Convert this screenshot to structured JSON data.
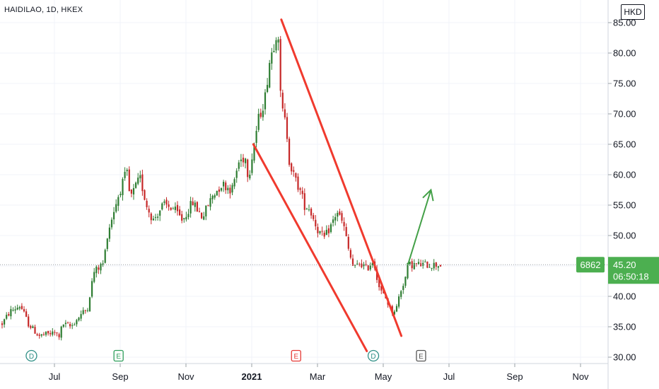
{
  "header": {
    "symbol": "HAIDILAO, 1D, HKEX",
    "currency": "HKD"
  },
  "price_box": {
    "ticker_code": "6862",
    "price": "45.20",
    "countdown": "06:50:18",
    "color": "#4caf50"
  },
  "colors": {
    "up": "#26a69a",
    "down": "#ef5350",
    "up_candle": "#2e7d32",
    "down_candle": "#c62828",
    "trendline": "#f03a2e",
    "arrow": "#43a047",
    "grid": "#f0f3fa"
  },
  "chart_data": {
    "type": "candlestick",
    "title": "",
    "xlabel": "",
    "ylabel": "",
    "ylim": [
      30,
      86.5
    ],
    "y_ticks": [
      "30.00",
      "35.00",
      "40.00",
      "45.00",
      "50.00",
      "55.00",
      "60.00",
      "65.00",
      "70.00",
      "75.00",
      "80.00",
      "85.00"
    ],
    "x_ticks": [
      {
        "label": "Jul",
        "month": 1,
        "bold": false
      },
      {
        "label": "Sep",
        "month": 3,
        "bold": false
      },
      {
        "label": "Nov",
        "month": 5,
        "bold": false
      },
      {
        "label": "2021",
        "month": 7,
        "bold": true
      },
      {
        "label": "Mar",
        "month": 9,
        "bold": false
      },
      {
        "label": "May",
        "month": 11,
        "bold": false
      },
      {
        "label": "Jul",
        "month": 13,
        "bold": false
      },
      {
        "label": "Sep",
        "month": 15,
        "bold": false
      },
      {
        "label": "Nov",
        "month": 17,
        "bold": false
      }
    ],
    "price_path": [
      [
        0.0,
        35.5
      ],
      [
        0.15,
        37.5
      ],
      [
        0.35,
        38.5
      ],
      [
        0.5,
        35.5
      ],
      [
        0.7,
        33.5
      ],
      [
        1.0,
        34.0
      ],
      [
        1.15,
        33.5
      ],
      [
        1.25,
        35.5
      ],
      [
        1.5,
        35.0
      ],
      [
        1.8,
        37.0
      ],
      [
        2.0,
        38.0
      ],
      [
        2.2,
        44.0
      ],
      [
        2.5,
        45.5
      ],
      [
        2.6,
        50.0
      ],
      [
        2.8,
        54.0
      ],
      [
        3.0,
        57.5
      ],
      [
        3.2,
        60.5
      ],
      [
        3.3,
        56.0
      ],
      [
        3.6,
        59.5
      ],
      [
        3.8,
        55.0
      ],
      [
        4.0,
        52.5
      ],
      [
        4.3,
        55.0
      ],
      [
        4.6,
        54.5
      ],
      [
        4.9,
        52.5
      ],
      [
        5.2,
        55.5
      ],
      [
        5.5,
        53.0
      ],
      [
        5.8,
        56.5
      ],
      [
        6.1,
        58.5
      ],
      [
        6.4,
        57.5
      ],
      [
        6.6,
        62.0
      ],
      [
        6.8,
        63.0
      ],
      [
        6.9,
        59.5
      ],
      [
        7.1,
        66.0
      ],
      [
        7.2,
        69.0
      ],
      [
        7.4,
        72.5
      ],
      [
        7.55,
        79.0
      ],
      [
        7.7,
        82.0
      ],
      [
        7.8,
        85.0
      ],
      [
        7.85,
        74.0
      ],
      [
        7.95,
        70.0
      ],
      [
        8.05,
        68.0
      ],
      [
        8.15,
        62.0
      ],
      [
        8.3,
        59.5
      ],
      [
        8.5,
        57.0
      ],
      [
        8.6,
        55.0
      ],
      [
        8.75,
        54.5
      ],
      [
        8.9,
        52.5
      ],
      [
        9.0,
        51.0
      ],
      [
        9.2,
        49.5
      ],
      [
        9.4,
        51.5
      ],
      [
        9.6,
        54.0
      ],
      [
        9.8,
        51.5
      ],
      [
        9.95,
        47.5
      ],
      [
        10.1,
        44.5
      ],
      [
        10.3,
        45.5
      ],
      [
        10.5,
        44.5
      ],
      [
        10.7,
        46.0
      ],
      [
        10.9,
        41.0
      ],
      [
        11.1,
        39.5
      ],
      [
        11.25,
        37.5
      ],
      [
        11.4,
        38.0
      ],
      [
        11.5,
        40.5
      ],
      [
        11.6,
        42.0
      ],
      [
        11.7,
        43.5
      ],
      [
        11.75,
        45.2
      ]
    ],
    "markers": [
      {
        "label": "D",
        "month": 0.3,
        "color": "#2f8f86"
      },
      {
        "label": "E",
        "month": 2.95,
        "color": "#2e9e5b"
      },
      {
        "label": "E",
        "month": 8.35,
        "color": "#e53935"
      },
      {
        "label": "D",
        "month": 10.7,
        "color": "#2f8f86"
      },
      {
        "label": "E",
        "month": 12.15,
        "color": "#555555"
      }
    ],
    "trendlines": [
      {
        "name": "upper",
        "from": [
          7.9,
          85.5
        ],
        "to": [
          11.55,
          33.5
        ]
      },
      {
        "name": "lower",
        "from": [
          7.05,
          65.0
        ],
        "to": [
          10.5,
          31.0
        ]
      }
    ],
    "arrow": {
      "from": [
        11.75,
        45.2
      ],
      "to": [
        12.45,
        57.5
      ]
    },
    "last_price": 45.2
  }
}
